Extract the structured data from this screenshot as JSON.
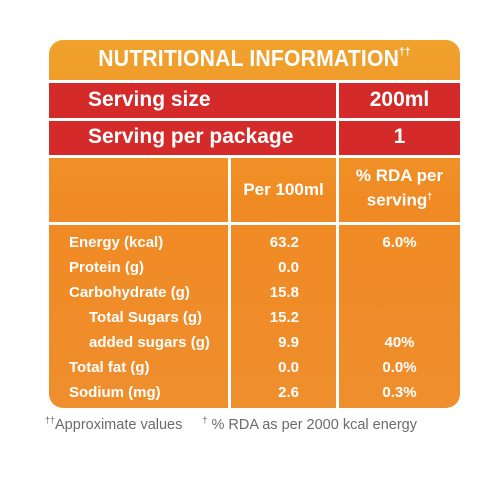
{
  "title": {
    "text": "NUTRITIONAL INFORMATION",
    "mark": "††"
  },
  "serving": [
    {
      "label": "Serving size",
      "value": "200ml"
    },
    {
      "label": "Serving per package",
      "value": "1"
    }
  ],
  "columns": {
    "per100": "Per 100ml",
    "rda_line1": "% RDA per",
    "rda_line2": "serving",
    "rda_mark": "†"
  },
  "rows": [
    {
      "name": "Energy (kcal)",
      "per100": "63.2",
      "rda": "6.0%"
    },
    {
      "name": "Protein (g)",
      "per100": "0.0",
      "rda": ""
    },
    {
      "name": "Carbohydrate (g)",
      "per100": "15.8",
      "rda": ""
    },
    {
      "name": "Total Sugars (g)",
      "per100": "15.2",
      "rda": ""
    },
    {
      "name": "added sugars (g)",
      "per100": "9.9",
      "rda": "40%"
    },
    {
      "name": "Total fat (g)",
      "per100": "0.0",
      "rda": "0.0%"
    },
    {
      "name": "Sodium (mg)",
      "per100": "2.6",
      "rda": "0.3%"
    }
  ],
  "footnote": {
    "mark1": "††",
    "text1": "Approximate values",
    "mark2": "†",
    "text2": " % RDA as per 2000 kcal energy"
  },
  "colors": {
    "orange": "#f0962a",
    "red": "#d42a2a",
    "text": "#ffffff"
  }
}
